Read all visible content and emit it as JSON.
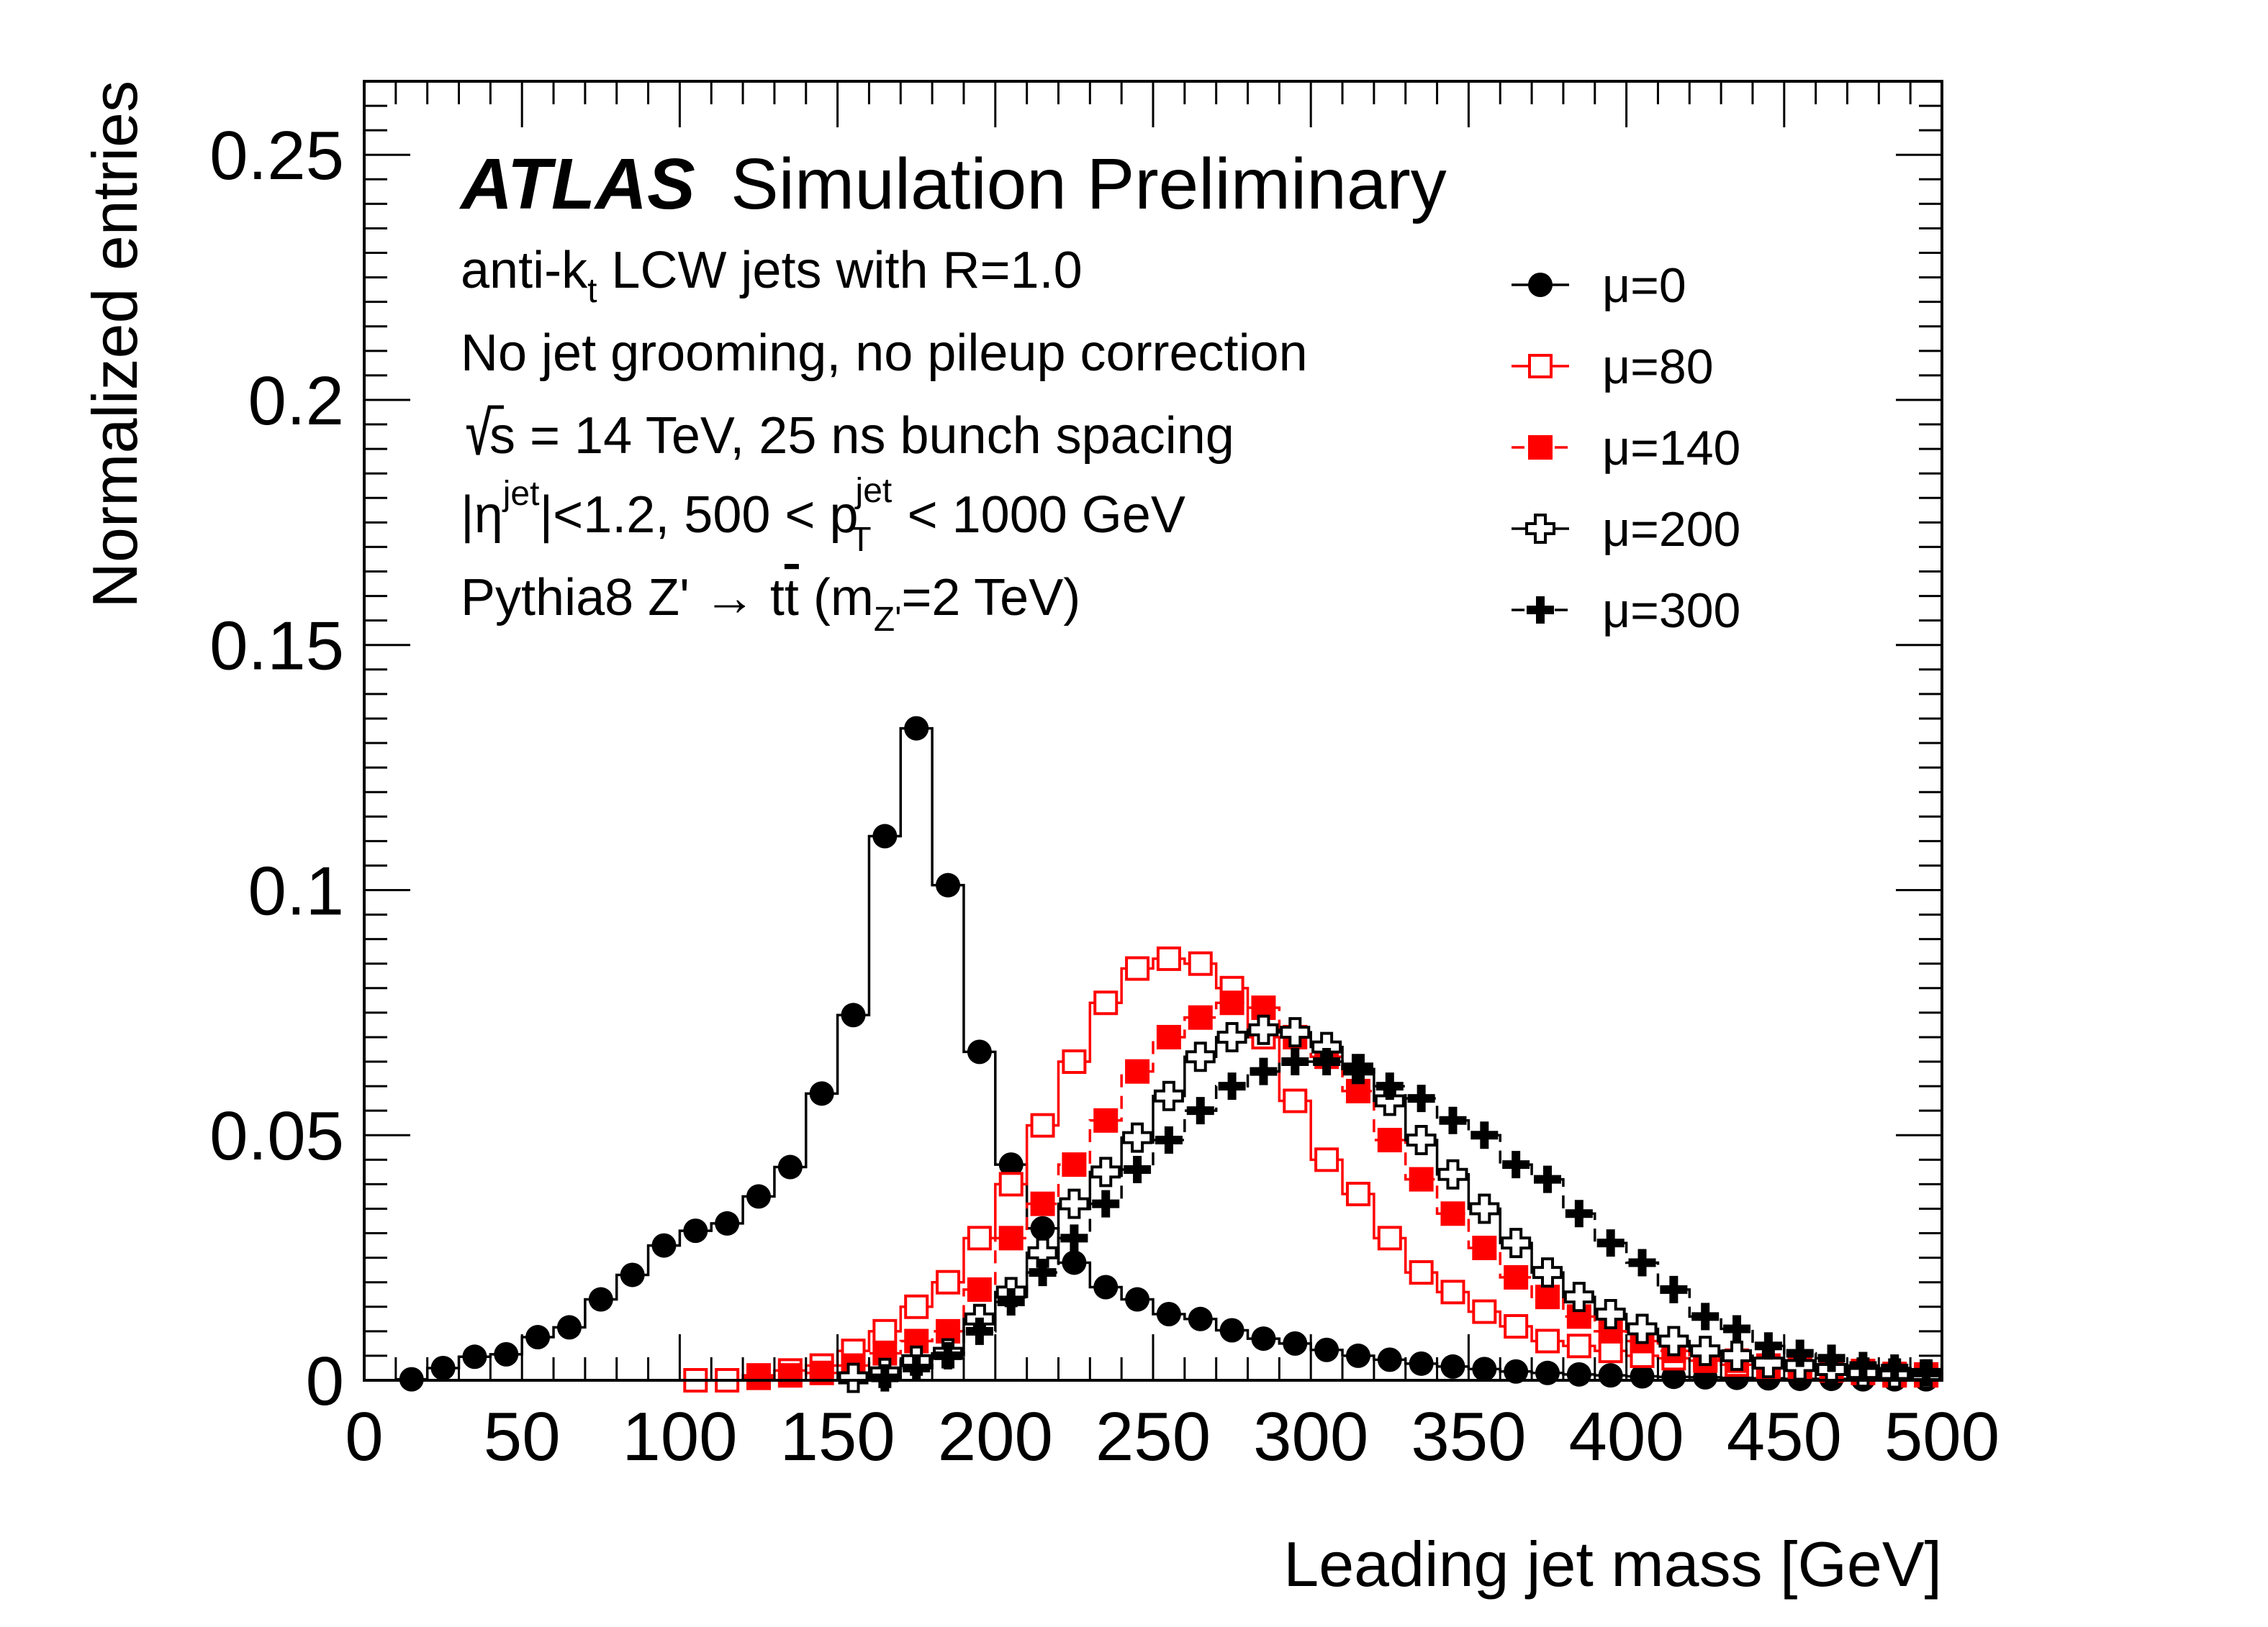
{
  "chart_data": {
    "type": "line",
    "xlabel": "Leading jet mass [GeV]",
    "ylabel": "Normalized entries",
    "xlim": [
      0,
      500
    ],
    "ylim": [
      0,
      0.265
    ],
    "x_ticks": [
      "0",
      "50",
      "100",
      "150",
      "200",
      "250",
      "300",
      "350",
      "400",
      "450",
      "500"
    ],
    "y_ticks": [
      "0",
      "0.05",
      "0.1",
      "0.15",
      "0.2",
      "0.25"
    ],
    "grid": false,
    "legend_position": "top-right",
    "annotations": {
      "atlas": "ATLAS",
      "status": "Simulation Preliminary",
      "line1_pre": "anti-k",
      "line1_sub": "t",
      "line1_post": " LCW jets with R=1.0",
      "line2": "No jet grooming, no pileup correction",
      "line3_sqrt": "s",
      "line3_post": " = 14 TeV, 25 ns bunch spacing",
      "line4_a": "|η",
      "line4_a_sup": "jet",
      "line4_b": "|<1.2, 500 < p",
      "line4_b_sup": "jet",
      "line4_b_sub": "T",
      "line4_c": " < 1000 GeV",
      "line5_a": "Pythia8 Z' → t",
      "line5_tbar": "t",
      "line5_b": " (m",
      "line5_sub": "Z'",
      "line5_c": "=2 TeV)"
    },
    "x": [
      15,
      25,
      35,
      45,
      55,
      65,
      75,
      85,
      95,
      105,
      115,
      125,
      135,
      145,
      155,
      165,
      175,
      185,
      195,
      205,
      215,
      225,
      235,
      245,
      255,
      265,
      275,
      285,
      295,
      305,
      315,
      325,
      335,
      345,
      355,
      365,
      375,
      385,
      395,
      405,
      415,
      425,
      435,
      445,
      455,
      465,
      475,
      485,
      495
    ],
    "series": [
      {
        "name": "μ=0",
        "label": "μ=0",
        "color": "#000000",
        "marker": "circle",
        "dashed": false,
        "values": [
          0.0002,
          0.0025,
          0.0048,
          0.0053,
          0.0088,
          0.0108,
          0.0165,
          0.0215,
          0.0275,
          0.0305,
          0.032,
          0.0375,
          0.0435,
          0.0585,
          0.0745,
          0.111,
          0.133,
          0.101,
          0.067,
          0.044,
          0.031,
          0.024,
          0.019,
          0.0165,
          0.0135,
          0.0125,
          0.0102,
          0.0085,
          0.0075,
          0.0062,
          0.005,
          0.0042,
          0.0034,
          0.0028,
          0.0023,
          0.0018,
          0.0015,
          0.0012,
          0.001,
          0.0008,
          0.0007,
          0.0006,
          0.0005,
          0.0004,
          0.0003,
          0.0003,
          0.0002,
          0.0002,
          0.0002
        ]
      },
      {
        "name": "μ=80",
        "label": "μ=80",
        "color": "#ff0000",
        "marker": "open-square",
        "dashed": false,
        "values": [
          null,
          null,
          null,
          null,
          null,
          null,
          null,
          null,
          null,
          0.0,
          0.0,
          0.001,
          0.002,
          0.003,
          0.006,
          0.01,
          0.015,
          0.02,
          0.029,
          0.04,
          0.052,
          0.065,
          0.077,
          0.084,
          0.086,
          0.085,
          0.08,
          0.07,
          0.057,
          0.045,
          0.038,
          0.029,
          0.022,
          0.018,
          0.014,
          0.011,
          0.008,
          0.007,
          0.006,
          0.005,
          0.0045,
          0.004,
          0.0032,
          0.0026,
          0.0022,
          0.002,
          0.0015,
          0.001,
          0.001
        ]
      },
      {
        "name": "μ=140",
        "label": "μ=140",
        "color": "#ff0000",
        "marker": "filled-square",
        "dashed": true,
        "values": [
          null,
          null,
          null,
          null,
          null,
          null,
          null,
          null,
          null,
          null,
          null,
          0.0005,
          0.001,
          0.0015,
          0.003,
          0.0055,
          0.008,
          0.01,
          0.0185,
          0.029,
          0.036,
          0.044,
          0.053,
          0.063,
          0.07,
          0.074,
          0.077,
          0.076,
          0.07,
          0.066,
          0.059,
          0.049,
          0.041,
          0.034,
          0.027,
          0.021,
          0.017,
          0.013,
          0.01,
          0.008,
          0.006,
          0.0045,
          0.004,
          0.003,
          0.0027,
          0.0022,
          0.0019,
          0.0013,
          0.0012
        ]
      },
      {
        "name": "μ=200",
        "label": "μ=200",
        "color": "#000000",
        "marker": "open-cross",
        "dashed": false,
        "values": [
          null,
          null,
          null,
          null,
          null,
          null,
          null,
          null,
          null,
          null,
          null,
          null,
          null,
          null,
          0.0005,
          0.0015,
          0.004,
          0.0055,
          0.0125,
          0.018,
          0.026,
          0.036,
          0.0425,
          0.0495,
          0.058,
          0.066,
          0.07,
          0.0715,
          0.071,
          0.068,
          0.0635,
          0.057,
          0.049,
          0.042,
          0.035,
          0.028,
          0.022,
          0.017,
          0.0135,
          0.0105,
          0.008,
          0.006,
          0.005,
          0.0035,
          0.003,
          0.0022,
          0.0016,
          0.0014,
          0.0012
        ]
      },
      {
        "name": "μ=300",
        "label": "μ=300",
        "color": "#000000",
        "marker": "filled-cross",
        "dashed": true,
        "values": [
          null,
          null,
          null,
          null,
          null,
          null,
          null,
          null,
          null,
          null,
          null,
          null,
          null,
          null,
          null,
          0.0005,
          0.0025,
          0.005,
          0.01,
          0.016,
          0.022,
          0.029,
          0.036,
          0.043,
          0.049,
          0.055,
          0.06,
          0.063,
          0.065,
          0.065,
          0.0635,
          0.06,
          0.0575,
          0.053,
          0.05,
          0.044,
          0.041,
          0.034,
          0.028,
          0.024,
          0.0185,
          0.013,
          0.0105,
          0.007,
          0.0055,
          0.0045,
          0.003,
          0.0025,
          0.0015
        ]
      }
    ]
  }
}
